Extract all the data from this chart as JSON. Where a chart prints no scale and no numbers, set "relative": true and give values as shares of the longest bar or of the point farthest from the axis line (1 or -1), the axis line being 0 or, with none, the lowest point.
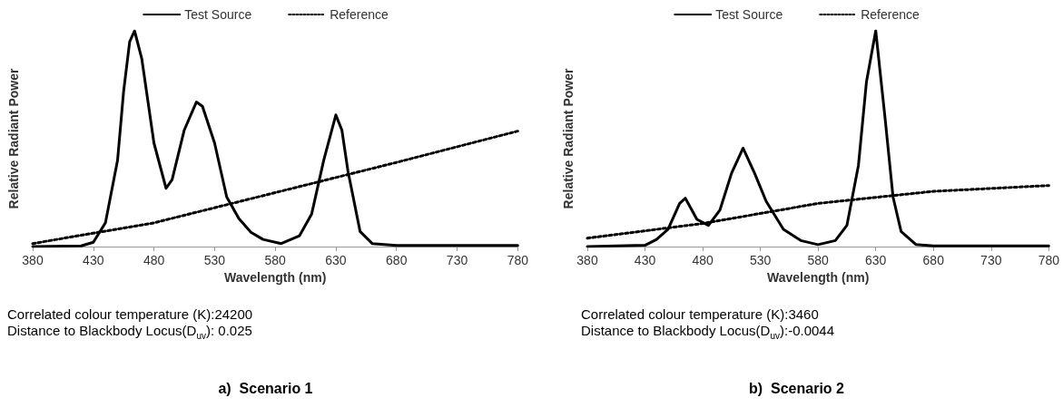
{
  "chart_data": [
    {
      "type": "line",
      "title": "a)  Scenario 1",
      "xlabel": "Wavelength (nm)",
      "ylabel": "Relative Radiant Power",
      "relative": true,
      "xlim": [
        380,
        780
      ],
      "xticks": [
        380,
        430,
        480,
        530,
        580,
        630,
        680,
        730,
        780
      ],
      "legend": "top",
      "marker": "none",
      "grid": false,
      "annotations": [
        "Correlated colour temperature (K):24200",
        "Distance to Blackbody Locus(D$_{uv}$): 0.025"
      ],
      "series": [
        {
          "name": "Test Source",
          "color": "#000000",
          "line_style": "solid",
          "x": [
            380,
            420,
            430,
            440,
            450,
            455,
            460,
            464,
            470,
            480,
            490,
            495,
            505,
            515,
            520,
            530,
            540,
            550,
            560,
            570,
            585,
            600,
            610,
            620,
            630,
            635,
            640,
            650,
            660,
            680,
            780
          ],
          "values": [
            0,
            0.003,
            0.02,
            0.11,
            0.4,
            0.72,
            0.95,
            1,
            0.87,
            0.48,
            0.27,
            0.31,
            0.54,
            0.67,
            0.65,
            0.48,
            0.23,
            0.13,
            0.066,
            0.033,
            0.014,
            0.05,
            0.15,
            0.4,
            0.61,
            0.54,
            0.35,
            0.07,
            0.014,
            0.005,
            0.005
          ]
        },
        {
          "name": "Reference",
          "color": "#000000",
          "line_style": "dotted",
          "x": [
            380,
            480,
            580,
            680,
            780
          ],
          "values": [
            0.014,
            0.11,
            0.25,
            0.39,
            0.535
          ]
        }
      ]
    },
    {
      "type": "line",
      "title": "b)  Scenario 2",
      "xlabel": "Wavelength (nm)",
      "ylabel": "Relative Radiant Power",
      "relative": true,
      "xlim": [
        380,
        780
      ],
      "xticks": [
        380,
        430,
        480,
        530,
        580,
        630,
        680,
        730,
        780
      ],
      "legend": "top",
      "marker": "none",
      "grid": false,
      "annotations": [
        "Correlated colour temperature (K):3460",
        "Distance to Blackbody Locus(D$_{uv}$):-0.0044"
      ],
      "series": [
        {
          "name": "Test Source",
          "color": "#000000",
          "line_style": "solid",
          "x": [
            380,
            430,
            440,
            450,
            460,
            465,
            475,
            485,
            495,
            505,
            515,
            525,
            535,
            550,
            565,
            580,
            595,
            605,
            615,
            622,
            630,
            638,
            645,
            652,
            665,
            680,
            780
          ],
          "values": [
            0,
            0.006,
            0.033,
            0.08,
            0.2,
            0.224,
            0.126,
            0.098,
            0.17,
            0.34,
            0.456,
            0.34,
            0.21,
            0.08,
            0.028,
            0.009,
            0.028,
            0.098,
            0.376,
            0.765,
            1,
            0.6,
            0.23,
            0.07,
            0.009,
            0.003,
            0.003
          ]
        },
        {
          "name": "Reference",
          "color": "#000000",
          "line_style": "dotted",
          "x": [
            380,
            480,
            580,
            680,
            780
          ],
          "values": [
            0.039,
            0.107,
            0.2,
            0.256,
            0.283
          ]
        }
      ]
    }
  ]
}
